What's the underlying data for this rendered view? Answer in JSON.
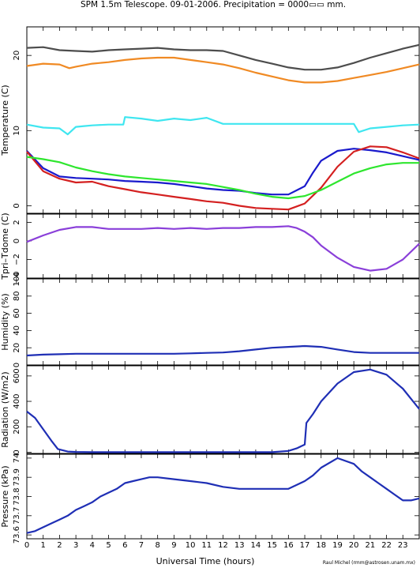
{
  "title": "SPM 1.5m Telescope. 09-01-2006. Precipitation = 0000▭▭ mm.",
  "credit": "Raul Michel (rmm@astrosen.unam.mx)",
  "xlabel": "Universal Time (hours)",
  "colors": {
    "gray": "#4d4d4d",
    "orange": "#f08a24",
    "cyan": "#3fe6f0",
    "blue": "#1a1acc",
    "red": "#d42020",
    "green": "#2ee62e",
    "purple": "#8a3fd9",
    "navy": "#1f2fb5"
  },
  "chart_data": [
    {
      "type": "scatter",
      "ylabel": "Temperature (C)",
      "xlim": [
        0,
        24
      ],
      "ylim": [
        -1,
        23.8
      ],
      "x_ticks": [
        "0",
        "1",
        "2",
        "3",
        "4",
        "5",
        "6",
        "7",
        "8",
        "9",
        "10",
        "11",
        "12",
        "13",
        "14",
        "15",
        "16",
        "17",
        "18",
        "19",
        "20",
        "21",
        "22",
        "23"
      ],
      "y_ticks": [
        "0",
        "10",
        "20"
      ],
      "series": [
        {
          "color": "gray",
          "x": [
            0,
            1,
            2,
            3,
            4,
            5,
            6,
            7,
            8,
            9,
            10,
            11,
            12,
            13,
            14,
            15,
            16,
            17,
            18,
            19,
            20,
            21,
            22,
            23,
            24
          ],
          "y": [
            21,
            21.1,
            20.7,
            20.6,
            20.5,
            20.7,
            20.8,
            20.9,
            21,
            20.8,
            20.7,
            20.7,
            20.6,
            20,
            19.4,
            18.9,
            18.4,
            18.1,
            18.1,
            18.4,
            19,
            19.7,
            20.3,
            20.9,
            21.4
          ]
        },
        {
          "color": "orange",
          "x": [
            0,
            1,
            2,
            2.6,
            3,
            4,
            5,
            6,
            7,
            8,
            9,
            10,
            11,
            12,
            13,
            14,
            15,
            16,
            17,
            18,
            19,
            20,
            21,
            22,
            23,
            24
          ],
          "y": [
            18.6,
            18.9,
            18.8,
            18.3,
            18.5,
            18.9,
            19.1,
            19.4,
            19.6,
            19.7,
            19.7,
            19.4,
            19.1,
            18.8,
            18.3,
            17.7,
            17.2,
            16.7,
            16.4,
            16.4,
            16.6,
            17,
            17.4,
            17.8,
            18.3,
            18.8
          ]
        },
        {
          "color": "cyan",
          "x": [
            0,
            1,
            2,
            2.5,
            3,
            3.5,
            4,
            5,
            5.9,
            6,
            7,
            8,
            9,
            10,
            11,
            12,
            13,
            14,
            15,
            16,
            17,
            18,
            19,
            20,
            20.3,
            21,
            22,
            23,
            24
          ],
          "y": [
            10.8,
            10.4,
            10.3,
            9.5,
            10.5,
            10.6,
            10.7,
            10.8,
            10.8,
            11.8,
            11.6,
            11.3,
            11.6,
            11.4,
            11.7,
            10.9,
            10.9,
            10.9,
            10.9,
            10.9,
            10.9,
            10.9,
            10.9,
            10.9,
            9.8,
            10.3,
            10.5,
            10.7,
            10.8
          ]
        },
        {
          "color": "blue",
          "x": [
            0,
            1,
            2,
            3,
            4,
            5,
            6,
            7,
            8,
            9,
            10,
            11,
            12,
            13,
            14,
            15,
            16,
            17,
            17.5,
            18,
            19,
            20,
            21,
            22,
            23,
            24
          ],
          "y": [
            7.3,
            5,
            3.9,
            3.7,
            3.6,
            3.5,
            3.3,
            3.2,
            3.1,
            2.9,
            2.6,
            2.3,
            2.1,
            2,
            1.7,
            1.5,
            1.5,
            2.6,
            4.4,
            6,
            7.3,
            7.6,
            7.4,
            7.1,
            6.6,
            6.1
          ]
        },
        {
          "color": "red",
          "x": [
            0,
            1,
            2,
            3,
            4,
            5,
            6,
            7,
            8,
            9,
            10,
            11,
            12,
            13,
            14,
            15,
            16,
            17,
            18,
            19,
            20,
            21,
            22,
            23,
            24
          ],
          "y": [
            7.2,
            4.6,
            3.6,
            3.1,
            3.2,
            2.6,
            2.2,
            1.8,
            1.5,
            1.2,
            0.9,
            0.6,
            0.4,
            0,
            -0.3,
            -0.4,
            -0.5,
            0.3,
            2.4,
            5.2,
            7.2,
            7.9,
            7.8,
            7.1,
            6.3
          ]
        },
        {
          "color": "green",
          "x": [
            0,
            1,
            2,
            3,
            4,
            5,
            6,
            7,
            8,
            9,
            10,
            11,
            12,
            13,
            14,
            15,
            16,
            17,
            18,
            19,
            20,
            21,
            22,
            23,
            24
          ],
          "y": [
            6.5,
            6.2,
            5.8,
            5.1,
            4.6,
            4.2,
            3.9,
            3.7,
            3.5,
            3.3,
            3.1,
            2.9,
            2.5,
            2.1,
            1.6,
            1.2,
            1,
            1.3,
            2.1,
            3.2,
            4.3,
            5,
            5.5,
            5.7,
            5.7
          ]
        }
      ]
    },
    {
      "type": "scatter",
      "ylabel": "Tpri–Tdome (C)",
      "xlim": [
        0,
        24
      ],
      "ylim": [
        -4,
        2.9
      ],
      "x_ticks": [
        "0",
        "1",
        "2",
        "3",
        "4",
        "5",
        "6",
        "7",
        "8",
        "9",
        "10",
        "11",
        "12",
        "13",
        "14",
        "15",
        "16",
        "17",
        "18",
        "19",
        "20",
        "21",
        "22",
        "23"
      ],
      "y_ticks": [
        "−4",
        "−2",
        "0",
        "2"
      ],
      "series": [
        {
          "color": "purple",
          "x": [
            0,
            1,
            2,
            3,
            4,
            5,
            6,
            7,
            8,
            9,
            10,
            11,
            12,
            13,
            14,
            15,
            16,
            16.5,
            17,
            17.5,
            18,
            19,
            20,
            21,
            22,
            23,
            24
          ],
          "y": [
            -0.1,
            0.6,
            1.2,
            1.5,
            1.5,
            1.3,
            1.3,
            1.3,
            1.4,
            1.3,
            1.4,
            1.3,
            1.4,
            1.4,
            1.5,
            1.5,
            1.6,
            1.4,
            1,
            0.4,
            -0.5,
            -1.8,
            -2.8,
            -3.2,
            -3,
            -2,
            -0.3
          ]
        }
      ]
    },
    {
      "type": "scatter",
      "ylabel": "Humidity (%)",
      "xlim": [
        0,
        24
      ],
      "ylim": [
        0,
        100
      ],
      "x_ticks": [
        "0",
        "1",
        "2",
        "3",
        "4",
        "5",
        "6",
        "7",
        "8",
        "9",
        "10",
        "11",
        "12",
        "13",
        "14",
        "15",
        "16",
        "17",
        "18",
        "19",
        "20",
        "21",
        "22",
        "23"
      ],
      "y_ticks": [
        "0",
        "20",
        "40",
        "60",
        "80",
        "100"
      ],
      "series": [
        {
          "color": "navy",
          "x": [
            0,
            1,
            2,
            3,
            4,
            5,
            6,
            7,
            8,
            9,
            10,
            11,
            12,
            13,
            14,
            15,
            16,
            17,
            18,
            19,
            20,
            21,
            22,
            23,
            24
          ],
          "y": [
            11,
            12,
            12.5,
            13,
            13,
            13,
            13,
            13,
            13,
            13,
            13.5,
            14,
            14.5,
            16,
            18,
            20,
            21,
            22,
            21,
            18,
            15,
            14,
            14,
            14,
            14
          ]
        }
      ]
    },
    {
      "type": "scatter",
      "ylabel": "Radiation (W/m2)",
      "xlim": [
        0,
        24
      ],
      "ylim": [
        -10,
        680
      ],
      "x_ticks": [
        "0",
        "1",
        "2",
        "3",
        "4",
        "5",
        "6",
        "7",
        "8",
        "9",
        "10",
        "11",
        "12",
        "13",
        "14",
        "15",
        "16",
        "17",
        "18",
        "19",
        "20",
        "21",
        "22",
        "23"
      ],
      "y_ticks": [
        "0",
        "200",
        "400",
        "600"
      ],
      "series": [
        {
          "color": "navy",
          "x": [
            0,
            0.5,
            1,
            1.5,
            1.9,
            2.5,
            3,
            4,
            5,
            6,
            7,
            8,
            9,
            10,
            11,
            12,
            13,
            14,
            15,
            16,
            16.5,
            17,
            17.1,
            17.5,
            18,
            19,
            20,
            21,
            22,
            23,
            24
          ],
          "y": [
            320,
            270,
            180,
            90,
            25,
            5,
            2,
            0,
            0,
            0,
            0,
            0,
            0,
            0,
            0,
            0,
            0,
            0,
            0,
            10,
            30,
            60,
            230,
            300,
            400,
            540,
            630,
            650,
            610,
            500,
            340
          ]
        }
      ]
    },
    {
      "type": "scatter",
      "ylabel": "Pressure (kPa)",
      "xlim": [
        0,
        24
      ],
      "ylim": [
        73.58,
        74.02
      ],
      "x_ticks": [
        "0",
        "1",
        "2",
        "3",
        "4",
        "5",
        "6",
        "7",
        "8",
        "9",
        "10",
        "11",
        "12",
        "13",
        "14",
        "15",
        "16",
        "17",
        "18",
        "19",
        "20",
        "21",
        "22",
        "23"
      ],
      "y_ticks": [
        "73.6",
        "73.7",
        "73.8",
        "73.9",
        "74"
      ],
      "series": [
        {
          "color": "navy",
          "x": [
            0,
            0.5,
            1,
            1.5,
            2,
            2.5,
            3,
            3.5,
            4,
            4.5,
            5,
            5.5,
            6,
            6.5,
            7,
            7.5,
            8,
            9,
            10,
            11,
            12,
            13,
            14,
            15,
            16,
            16.5,
            17,
            17.5,
            18,
            19,
            20,
            20.5,
            21,
            21.5,
            22,
            22.5,
            23,
            23.5,
            24
          ],
          "y": [
            73.61,
            73.62,
            73.64,
            73.66,
            73.68,
            73.7,
            73.73,
            73.75,
            73.77,
            73.8,
            73.82,
            73.84,
            73.87,
            73.88,
            73.89,
            73.9,
            73.9,
            73.89,
            73.88,
            73.87,
            73.85,
            73.84,
            73.84,
            73.84,
            73.84,
            73.86,
            73.88,
            73.91,
            73.95,
            74,
            73.97,
            73.93,
            73.9,
            73.87,
            73.84,
            73.81,
            73.78,
            73.78,
            73.79
          ]
        }
      ]
    }
  ]
}
